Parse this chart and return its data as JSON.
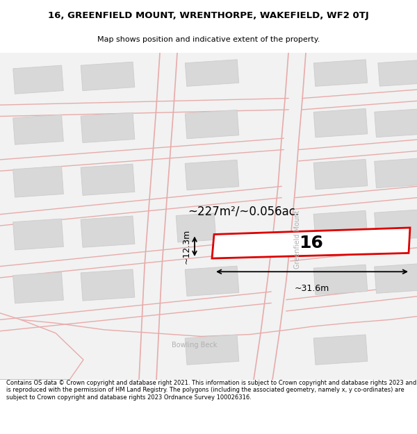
{
  "title": "16, GREENFIELD MOUNT, WRENTHORPE, WAKEFIELD, WF2 0TJ",
  "subtitle": "Map shows position and indicative extent of the property.",
  "footer": "Contains OS data © Crown copyright and database right 2021. This information is subject to Crown copyright and database rights 2023 and is reproduced with the permission of HM Land Registry. The polygons (including the associated geometry, namely x, y co-ordinates) are subject to Crown copyright and database rights 2023 Ordnance Survey 100026316.",
  "map_bg": "#f2f2f2",
  "building_fill": "#d8d8d8",
  "building_edge": "#cccccc",
  "road_color": "#e8aaaa",
  "highlight_color": "#dd0000",
  "highlight_fill": "#ffffff",
  "street_label": "Greenfield Mount",
  "area_label": "~227m²/~0.056ac.",
  "dim_width": "~31.6m",
  "dim_height": "~12.3m",
  "number_label": "16"
}
